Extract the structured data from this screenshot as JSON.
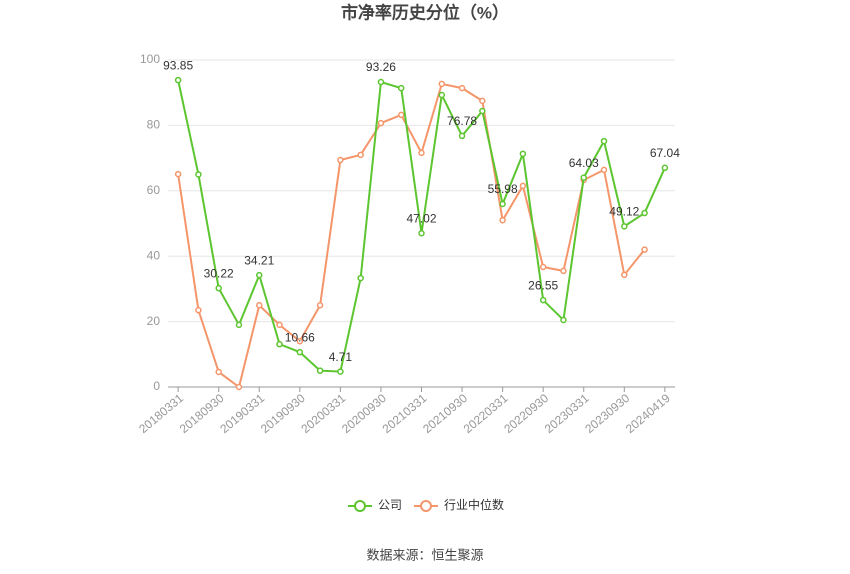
{
  "chart_data": {
    "type": "line",
    "title": "市净率历史分位（%）",
    "source": "数据来源：恒生聚源",
    "categories": [
      "20180331",
      null,
      "20180930",
      null,
      "20190331",
      null,
      "20190930",
      null,
      "20200331",
      null,
      "20200930",
      null,
      "20210331",
      null,
      "20210930",
      null,
      "20220331",
      null,
      "20220930",
      null,
      "20230331",
      null,
      "20230930",
      null,
      "20240419"
    ],
    "series": [
      {
        "name": "公司",
        "color": "#5cc52f",
        "values": [
          93.85,
          65,
          30.22,
          19,
          34.21,
          13.1,
          10.66,
          5,
          4.71,
          33.3,
          93.26,
          91.4,
          47.02,
          89.3,
          76.78,
          84.4,
          55.98,
          71.3,
          26.55,
          20.5,
          64.03,
          75.2,
          49.12,
          53.2,
          67.04
        ],
        "value_labels": [
          "93.85",
          null,
          "30.22",
          null,
          "34.21",
          null,
          "10.66",
          null,
          "4.71",
          null,
          "93.26",
          null,
          "47.02",
          null,
          "76.78",
          null,
          "55.98",
          null,
          "26.55",
          null,
          "64.03",
          null,
          "49.12",
          null,
          "67.04"
        ]
      },
      {
        "name": "行业中位数",
        "color": "#f4956a",
        "values": [
          65.1,
          23.5,
          4.6,
          0,
          25,
          19,
          14,
          25,
          69.4,
          71,
          80.7,
          83.2,
          71.6,
          92.7,
          91.4,
          87.5,
          51,
          61.5,
          36.7,
          35.5,
          63.3,
          66.4,
          34.3,
          42,
          null
        ]
      }
    ],
    "ylim": [
      0,
      100
    ],
    "yticks": [
      0,
      20,
      40,
      60,
      80,
      100
    ],
    "grid": true
  }
}
